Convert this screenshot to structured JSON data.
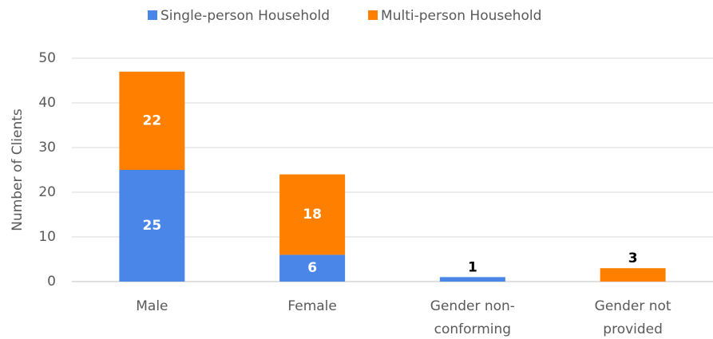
{
  "chart_data": {
    "type": "stacked_bar",
    "y_label": "Number of Clients",
    "categories": [
      "Male",
      "Female",
      "Gender non-conforming",
      "Gender not provided"
    ],
    "series": [
      {
        "name": "Single-person Household",
        "color": "#4a86e8",
        "values": [
          25,
          6,
          1,
          0
        ]
      },
      {
        "name": "Multi-person Household",
        "color": "#ff8000",
        "values": [
          22,
          18,
          0,
          3
        ]
      }
    ],
    "ylim": [
      0,
      50
    ],
    "yticks": [
      0,
      10,
      20,
      30,
      40,
      50
    ],
    "grid": true,
    "legend": "top"
  }
}
